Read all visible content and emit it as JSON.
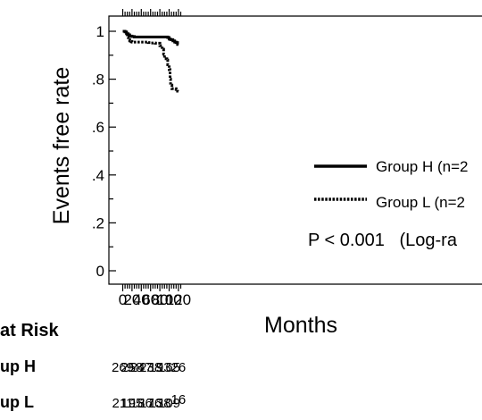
{
  "chart_data": {
    "type": "line",
    "xlabel": "Months",
    "ylabel": "Events free rate",
    "xlim": [
      0,
      125
    ],
    "ylim": [
      0,
      1
    ],
    "x_ticks": [
      0,
      20,
      40,
      60,
      80,
      100,
      120
    ],
    "y_ticks": [
      {
        "value": 0,
        "label": "0"
      },
      {
        "value": 0.2,
        "label": ".2"
      },
      {
        "value": 0.4,
        "label": ".4"
      },
      {
        "value": 0.6,
        "label": ".6"
      },
      {
        "value": 0.8,
        "label": ".8"
      },
      {
        "value": 1,
        "label": "1"
      }
    ],
    "grid": false,
    "legend_position": "right",
    "series": [
      {
        "name": "Group H (n=2",
        "style": "solid",
        "x": [
          0,
          5,
          8,
          12,
          15,
          20,
          25,
          40,
          60,
          80,
          97,
          100,
          103,
          108,
          112,
          115,
          118,
          120
        ],
        "y": [
          1.0,
          0.997,
          0.99,
          0.985,
          0.98,
          0.978,
          0.976,
          0.976,
          0.976,
          0.976,
          0.974,
          0.967,
          0.965,
          0.96,
          0.955,
          0.953,
          0.945,
          0.945
        ]
      },
      {
        "name": "Group L (n=2",
        "style": "dotted",
        "x": [
          0,
          5,
          8,
          10,
          12,
          15,
          18,
          20,
          25,
          40,
          55,
          60,
          70,
          80,
          85,
          88,
          90,
          92,
          95,
          97,
          100,
          102,
          103,
          106,
          110,
          115,
          118,
          120
        ],
        "y": [
          1.0,
          0.995,
          0.985,
          0.975,
          0.965,
          0.96,
          0.957,
          0.955,
          0.955,
          0.955,
          0.953,
          0.951,
          0.95,
          0.94,
          0.925,
          0.905,
          0.885,
          0.885,
          0.88,
          0.86,
          0.84,
          0.8,
          0.775,
          0.76,
          0.76,
          0.757,
          0.75,
          0.75
        ]
      }
    ],
    "annotation": "P < 0.001   (Log-ra",
    "risk_table": {
      "header": "at Risk",
      "rows": [
        {
          "label": "up H",
          "values": [
            "269",
            "258",
            "247",
            "238",
            "193",
            "165",
            "26"
          ]
        },
        {
          "label": "up L",
          "values": [
            "211",
            "195",
            "186",
            "176",
            "138",
            "109",
            "16"
          ]
        }
      ]
    }
  }
}
